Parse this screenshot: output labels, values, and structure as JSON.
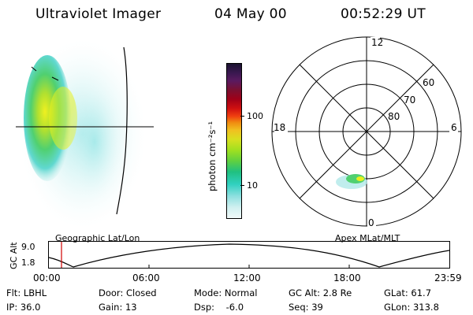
{
  "header": {
    "instrument": "Ultraviolet Imager",
    "date": "04 May 00",
    "time": "00:52:29 UT"
  },
  "geo_panel": {
    "label": "Geographic Lat/Lon"
  },
  "colorbar": {
    "unit_label": "photon cm⁻²s⁻¹",
    "ticks": [
      "100",
      "10"
    ],
    "colors": [
      "#1a1330",
      "#3a1850",
      "#5a1a60",
      "#7a1030",
      "#a00018",
      "#d01010",
      "#f04010",
      "#f08a10",
      "#f0c020",
      "#d8e020",
      "#a0e020",
      "#60d040",
      "#20c080",
      "#30d0c0",
      "#90e0e0",
      "#d0f0f0",
      "#f0f8f8"
    ]
  },
  "polar_panel": {
    "label": "Apex MLat/MLT",
    "mlt_labels": [
      "12",
      "18",
      "6",
      "0"
    ],
    "lat_labels": [
      "60",
      "70",
      "80"
    ]
  },
  "altitude_plot": {
    "ylabel": "GC Alt",
    "yticks": [
      "9.0",
      "1.8"
    ],
    "xticks": [
      "00:00",
      "06:00",
      "12:00",
      "18:00",
      "23:59"
    ],
    "marker_color": "#d00000"
  },
  "info": {
    "flt": "Flt: LBHL",
    "door": "Door: Closed",
    "mode": "Mode: Normal",
    "gc_alt": "GC Alt: 2.8 Re",
    "glat": "GLat: 61.7",
    "ip": "IP: 36.0",
    "gain": "Gain: 13",
    "dsp": "Dsp:    -6.0",
    "seq": "Seq: 39",
    "glon": "GLon: 313.8"
  }
}
